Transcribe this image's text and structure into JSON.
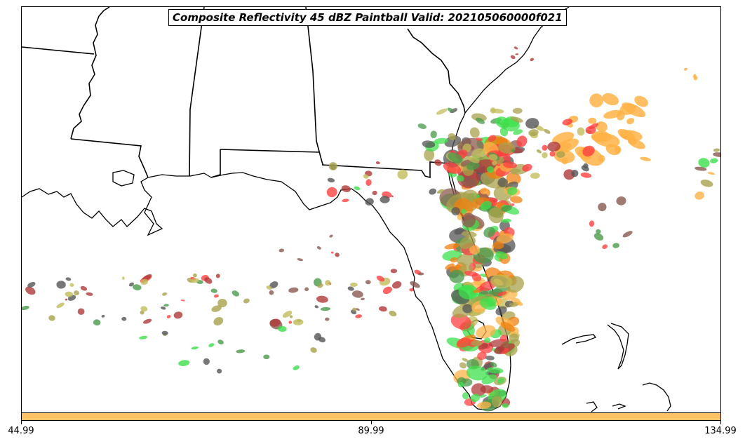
{
  "map": {
    "title": "Composite Reflectivity 45 dBZ Paintball Valid: 202105060000f021",
    "colors": {
      "red": "#ff4040",
      "darkred": "#b03a3a",
      "orange": "#ffb347",
      "darkorange": "#f08010",
      "olive": "#a8a24c",
      "khaki": "#c2bd5a",
      "green": "#3ce04c",
      "darkgreen": "#4a9a4a",
      "gray": "#555555",
      "brown": "#8a5a50"
    }
  },
  "colorbar": {
    "color": "#ffc266",
    "ticks": [
      "44.99",
      "89.99",
      "134.99"
    ]
  }
}
